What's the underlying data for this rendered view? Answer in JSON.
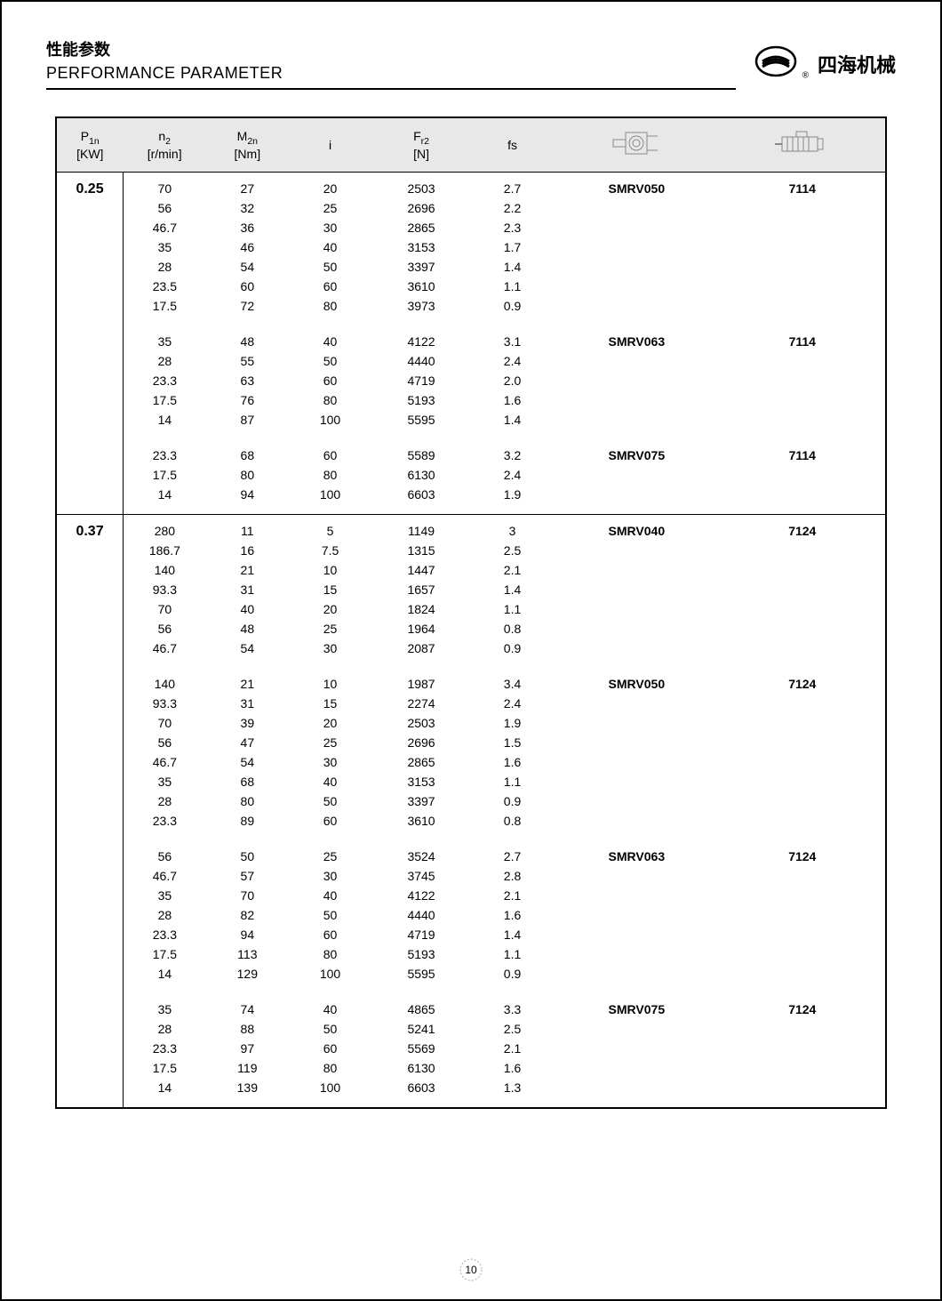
{
  "header": {
    "title_cn": "性能参数",
    "title_en": "PERFORMANCE PARAMETER",
    "brand_cn": "四海机械"
  },
  "columns": {
    "c1": "P₁ₙ",
    "c1u": "[KW]",
    "c2": "n₂",
    "c2u": "[r/min]",
    "c3": "M₂ₙ",
    "c3u": "[Nm]",
    "c4": "i",
    "c5": "F_r2",
    "c5u": "[N]",
    "c6": "fs"
  },
  "rows": [
    {
      "p": "0.25",
      "n2": "70",
      "m2n": "27",
      "i": "20",
      "fr2": "2503",
      "fs": "2.7",
      "model": "SMRV050",
      "motor": "7114",
      "flags": "start major"
    },
    {
      "n2": "56",
      "m2n": "32",
      "i": "25",
      "fr2": "2696",
      "fs": "2.2"
    },
    {
      "n2": "46.7",
      "m2n": "36",
      "i": "30",
      "fr2": "2865",
      "fs": "2.3"
    },
    {
      "n2": "35",
      "m2n": "46",
      "i": "40",
      "fr2": "3153",
      "fs": "1.7"
    },
    {
      "n2": "28",
      "m2n": "54",
      "i": "50",
      "fr2": "3397",
      "fs": "1.4"
    },
    {
      "n2": "23.5",
      "m2n": "60",
      "i": "60",
      "fr2": "3610",
      "fs": "1.1"
    },
    {
      "n2": "17.5",
      "m2n": "72",
      "i": "80",
      "fr2": "3973",
      "fs": "0.9",
      "flags": "gap"
    },
    {
      "n2": "35",
      "m2n": "48",
      "i": "40",
      "fr2": "4122",
      "fs": "3.1",
      "model": "SMRV063",
      "motor": "7114",
      "flags": "top"
    },
    {
      "n2": "28",
      "m2n": "55",
      "i": "50",
      "fr2": "4440",
      "fs": "2.4"
    },
    {
      "n2": "23.3",
      "m2n": "63",
      "i": "60",
      "fr2": "4719",
      "fs": "2.0"
    },
    {
      "n2": "17.5",
      "m2n": "76",
      "i": "80",
      "fr2": "5193",
      "fs": "1.6"
    },
    {
      "n2": "14",
      "m2n": "87",
      "i": "100",
      "fr2": "5595",
      "fs": "1.4",
      "flags": "gap"
    },
    {
      "n2": "23.3",
      "m2n": "68",
      "i": "60",
      "fr2": "5589",
      "fs": "3.2",
      "model": "SMRV075",
      "motor": "7114",
      "flags": "top"
    },
    {
      "n2": "17.5",
      "m2n": "80",
      "i": "80",
      "fr2": "6130",
      "fs": "2.4"
    },
    {
      "n2": "14",
      "m2n": "94",
      "i": "100",
      "fr2": "6603",
      "fs": "1.9",
      "flags": "gap"
    },
    {
      "p": "0.37",
      "n2": "280",
      "m2n": "11",
      "i": "5",
      "fr2": "1149",
      "fs": "3",
      "model": "SMRV040",
      "motor": "7124",
      "flags": "start major"
    },
    {
      "n2": "186.7",
      "m2n": "16",
      "i": "7.5",
      "fr2": "1315",
      "fs": "2.5"
    },
    {
      "n2": "140",
      "m2n": "21",
      "i": "10",
      "fr2": "1447",
      "fs": "2.1"
    },
    {
      "n2": "93.3",
      "m2n": "31",
      "i": "15",
      "fr2": "1657",
      "fs": "1.4"
    },
    {
      "n2": "70",
      "m2n": "40",
      "i": "20",
      "fr2": "1824",
      "fs": "1.1"
    },
    {
      "n2": "56",
      "m2n": "48",
      "i": "25",
      "fr2": "1964",
      "fs": "0.8"
    },
    {
      "n2": "46.7",
      "m2n": "54",
      "i": "30",
      "fr2": "2087",
      "fs": "0.9",
      "flags": "gap"
    },
    {
      "n2": "140",
      "m2n": "21",
      "i": "10",
      "fr2": "1987",
      "fs": "3.4",
      "model": "SMRV050",
      "motor": "7124",
      "flags": "top"
    },
    {
      "n2": "93.3",
      "m2n": "31",
      "i": "15",
      "fr2": "2274",
      "fs": "2.4"
    },
    {
      "n2": "70",
      "m2n": "39",
      "i": "20",
      "fr2": "2503",
      "fs": "1.9"
    },
    {
      "n2": "56",
      "m2n": "47",
      "i": "25",
      "fr2": "2696",
      "fs": "1.5"
    },
    {
      "n2": "46.7",
      "m2n": "54",
      "i": "30",
      "fr2": "2865",
      "fs": "1.6"
    },
    {
      "n2": "35",
      "m2n": "68",
      "i": "40",
      "fr2": "3153",
      "fs": "1.1"
    },
    {
      "n2": "28",
      "m2n": "80",
      "i": "50",
      "fr2": "3397",
      "fs": "0.9"
    },
    {
      "n2": "23.3",
      "m2n": "89",
      "i": "60",
      "fr2": "3610",
      "fs": "0.8",
      "flags": "gap"
    },
    {
      "n2": "56",
      "m2n": "50",
      "i": "25",
      "fr2": "3524",
      "fs": "2.7",
      "model": "SMRV063",
      "motor": "7124",
      "flags": "top"
    },
    {
      "n2": "46.7",
      "m2n": "57",
      "i": "30",
      "fr2": "3745",
      "fs": "2.8"
    },
    {
      "n2": "35",
      "m2n": "70",
      "i": "40",
      "fr2": "4122",
      "fs": "2.1"
    },
    {
      "n2": "28",
      "m2n": "82",
      "i": "50",
      "fr2": "4440",
      "fs": "1.6"
    },
    {
      "n2": "23.3",
      "m2n": "94",
      "i": "60",
      "fr2": "4719",
      "fs": "1.4"
    },
    {
      "n2": "17.5",
      "m2n": "113",
      "i": "80",
      "fr2": "5193",
      "fs": "1.1"
    },
    {
      "n2": "14",
      "m2n": "129",
      "i": "100",
      "fr2": "5595",
      "fs": "0.9",
      "flags": "gap"
    },
    {
      "n2": "35",
      "m2n": "74",
      "i": "40",
      "fr2": "4865",
      "fs": "3.3",
      "model": "SMRV075",
      "motor": "7124",
      "flags": "top"
    },
    {
      "n2": "28",
      "m2n": "88",
      "i": "50",
      "fr2": "5241",
      "fs": "2.5"
    },
    {
      "n2": "23.3",
      "m2n": "97",
      "i": "60",
      "fr2": "5569",
      "fs": "2.1"
    },
    {
      "n2": "17.5",
      "m2n": "119",
      "i": "80",
      "fr2": "6130",
      "fs": "1.6"
    },
    {
      "n2": "14",
      "m2n": "139",
      "i": "100",
      "fr2": "6603",
      "fs": "1.3",
      "flags": "gap last"
    }
  ],
  "page_number": "10",
  "colors": {
    "header_bg": "#e8e8e8",
    "border": "#000000"
  },
  "colwidths": [
    "8%",
    "10%",
    "10%",
    "10%",
    "12%",
    "10%",
    "20%",
    "20%"
  ]
}
